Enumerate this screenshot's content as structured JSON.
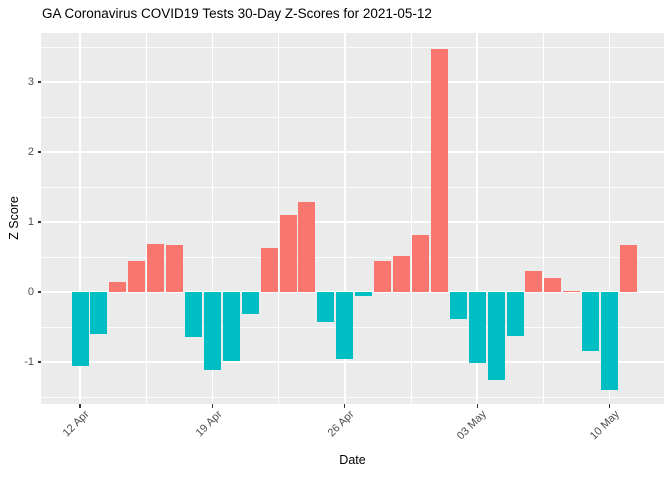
{
  "page": {
    "title": "GA Coronavirus COVID19 Tests 30-Day Z-Scores for 2021-05-12"
  },
  "chart_data": {
    "type": "bar",
    "title": "GA Coronavirus COVID19 Tests 30-Day Z-Scores for 2021-05-12",
    "xlabel": "Date",
    "ylabel": "Z Score",
    "x": [
      "2021-04-12",
      "2021-04-13",
      "2021-04-14",
      "2021-04-15",
      "2021-04-16",
      "2021-04-17",
      "2021-04-18",
      "2021-04-19",
      "2021-04-20",
      "2021-04-21",
      "2021-04-22",
      "2021-04-23",
      "2021-04-24",
      "2021-04-25",
      "2021-04-26",
      "2021-04-27",
      "2021-04-28",
      "2021-04-29",
      "2021-04-30",
      "2021-05-01",
      "2021-05-02",
      "2021-05-03",
      "2021-05-04",
      "2021-05-05",
      "2021-05-06",
      "2021-05-07",
      "2021-05-08",
      "2021-05-09",
      "2021-05-10",
      "2021-05-11"
    ],
    "values": [
      -1.06,
      -0.6,
      0.15,
      0.45,
      0.69,
      0.67,
      -0.64,
      -1.11,
      -0.99,
      -0.32,
      0.63,
      1.1,
      1.29,
      -0.43,
      -0.96,
      -0.05,
      0.44,
      0.51,
      0.81,
      3.47,
      -0.38,
      -1.02,
      -1.26,
      -0.63,
      0.3,
      0.2,
      0.02,
      -0.84,
      -1.4,
      0.67
    ],
    "x_ticks": [
      {
        "label": "12 Apr",
        "date": "2021-04-12"
      },
      {
        "label": "19 Apr",
        "date": "2021-04-19"
      },
      {
        "label": "26 Apr",
        "date": "2021-04-26"
      },
      {
        "label": "03 May",
        "date": "2021-05-03"
      },
      {
        "label": "10 May",
        "date": "2021-05-10"
      }
    ],
    "y_ticks": [
      -1,
      0,
      1,
      2,
      3
    ],
    "y_minor_ticks": [
      -1.5,
      -0.5,
      0.5,
      1.5,
      2.5,
      3.5
    ],
    "ylim": [
      -1.6,
      3.7
    ],
    "grid": "white major and minor gridlines on grey panel",
    "legend": "none",
    "colors": {
      "positive_bar": "#F8766D",
      "negative_bar": "#00BFC4",
      "panel_background": "#EBEBEB",
      "gridline": "#FFFFFF",
      "axis_text": "#4D4D4D",
      "tick_mark": "#333333",
      "title_text": "#000000",
      "plot_background": "#FFFFFF"
    }
  }
}
